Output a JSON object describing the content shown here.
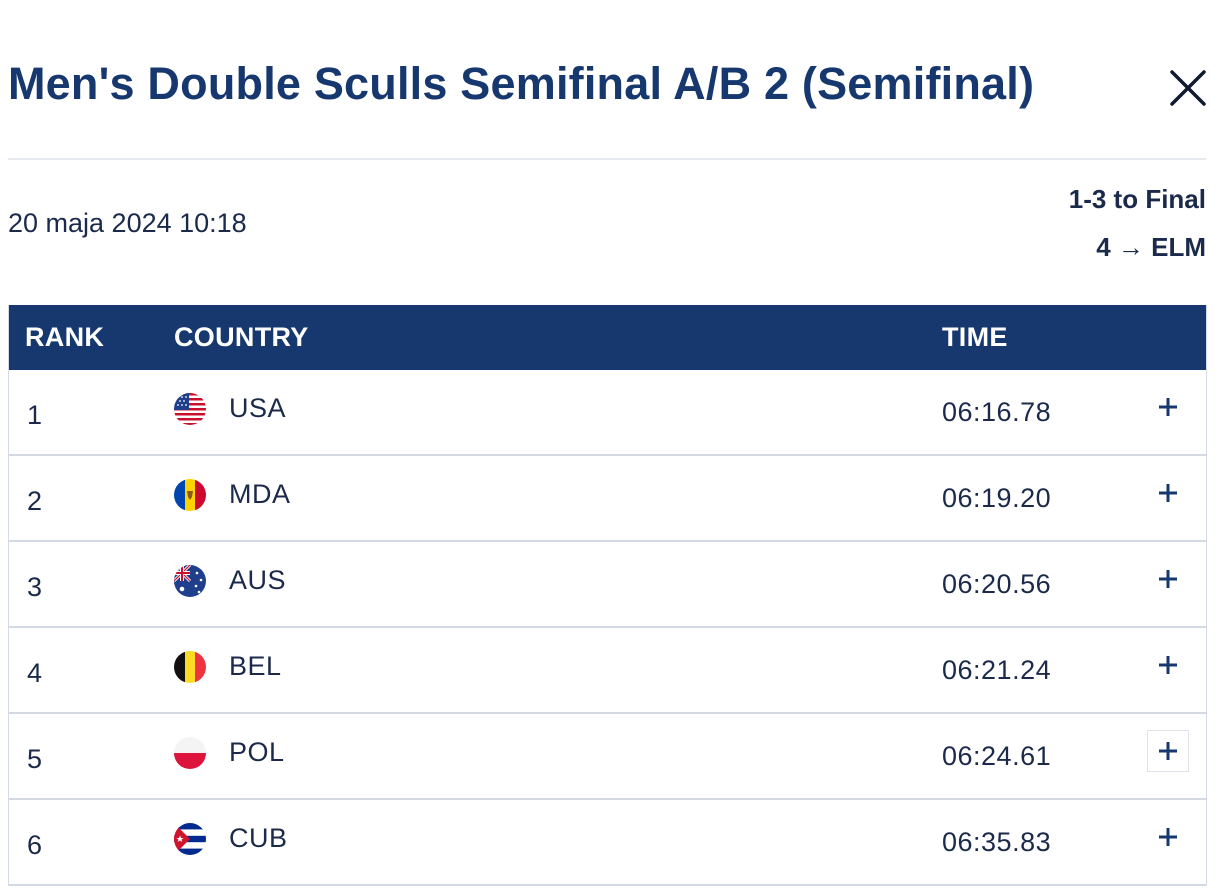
{
  "header": {
    "title": "Men's Double Sculls Semifinal A/B 2 (Semifinal)",
    "close_icon": "close-icon"
  },
  "info": {
    "date": "20 maja 2024 10:18",
    "progression_1": "1-3 to Final",
    "progression_2": "4 → ELM"
  },
  "table": {
    "headers": {
      "rank": "RANK",
      "country": "COUNTRY",
      "time": "TIME"
    },
    "rows": [
      {
        "rank": "1",
        "country": "USA",
        "flag": "usa-flag-icon",
        "time": "06:16.78"
      },
      {
        "rank": "2",
        "country": "MDA",
        "flag": "moldova-flag-icon",
        "time": "06:19.20"
      },
      {
        "rank": "3",
        "country": "AUS",
        "flag": "australia-flag-icon",
        "time": "06:20.56"
      },
      {
        "rank": "4",
        "country": "BEL",
        "flag": "belgium-flag-icon",
        "time": "06:21.24"
      },
      {
        "rank": "5",
        "country": "POL",
        "flag": "poland-flag-icon",
        "time": "06:24.61"
      },
      {
        "rank": "6",
        "country": "CUB",
        "flag": "cuba-flag-icon",
        "time": "06:35.83"
      }
    ],
    "expand_icon": "plus-icon"
  },
  "colors": {
    "primary": "#17386f",
    "text": "#1b2a4a",
    "border": "#d3dae4"
  }
}
